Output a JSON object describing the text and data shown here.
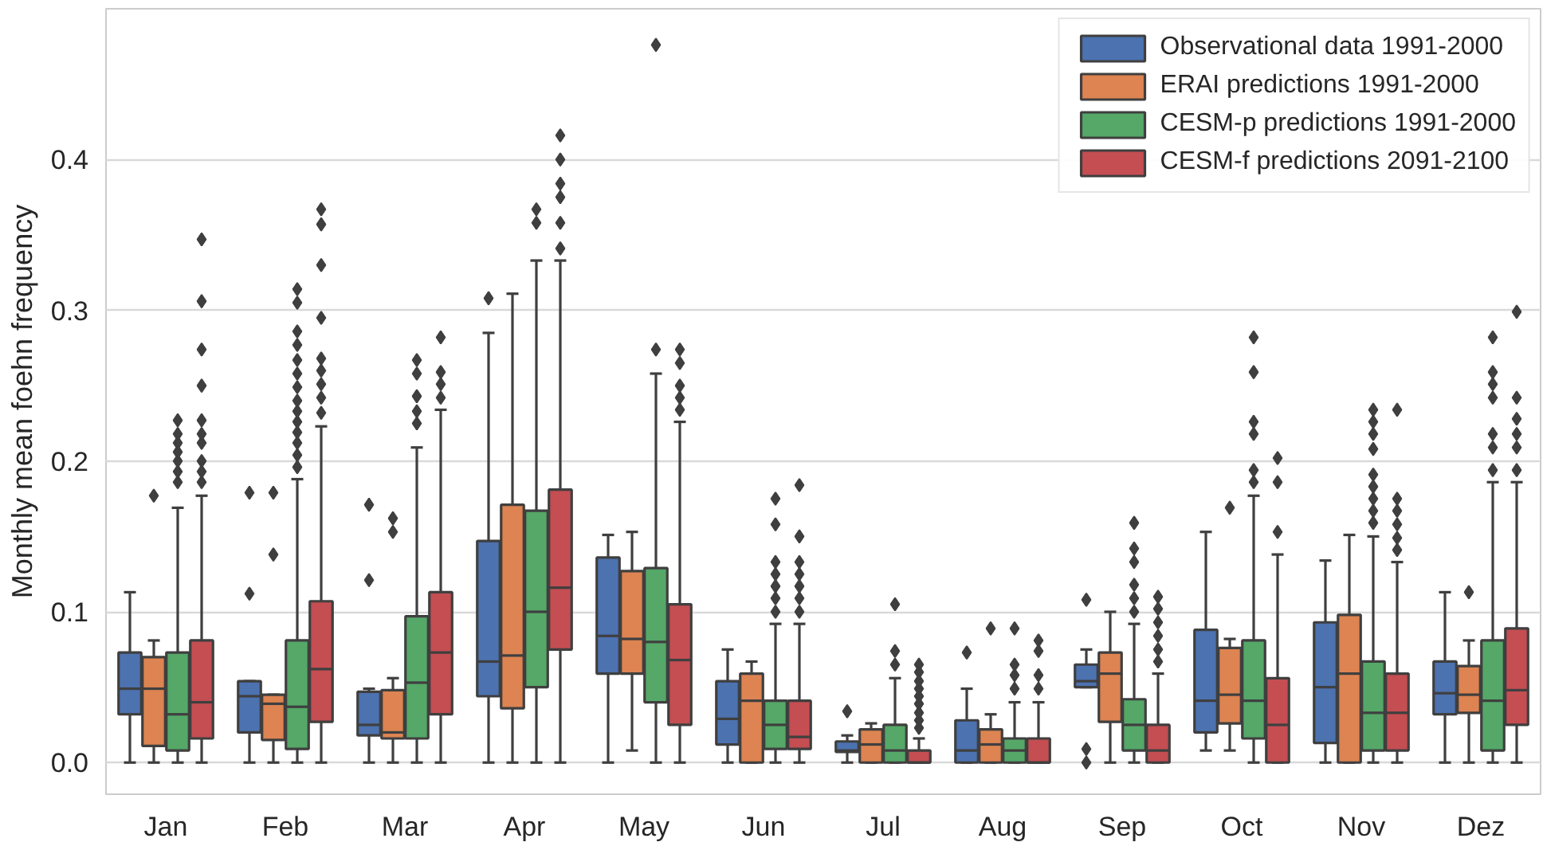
{
  "chart_data": {
    "type": "box",
    "ylabel": "Monthly mean foehn frequency",
    "categories": [
      "Jan",
      "Feb",
      "Mar",
      "Apr",
      "May",
      "Jun",
      "Jul",
      "Aug",
      "Sep",
      "Oct",
      "Nov",
      "Dez"
    ],
    "ylim": [
      -0.021,
      0.5
    ],
    "yticks": [
      {
        "value": 0,
        "label": "0.0"
      },
      {
        "value": 0.1,
        "label": "0.1"
      },
      {
        "value": 0.2,
        "label": "0.2"
      },
      {
        "value": 0.3,
        "label": "0.3"
      },
      {
        "value": 0.4,
        "label": "0.4"
      }
    ],
    "grid": "y",
    "legend": "top right",
    "marker": "diamond",
    "series": [
      {
        "name": "Observational data 1991-2000",
        "color": "#4c72b0",
        "boxes": [
          {
            "low": 0,
            "q1": 0.032,
            "median": 0.049,
            "q3": 0.073,
            "high": 0.113
          },
          {
            "low": 0,
            "q1": 0.02,
            "median": 0.044,
            "q3": 0.054,
            "high": 0.054,
            "outliers": [
              0.112,
              0.179
            ]
          },
          {
            "low": 0,
            "q1": 0.018,
            "median": 0.025,
            "q3": 0.047,
            "high": 0.049,
            "outliers": [
              0.121,
              0.171
            ]
          },
          {
            "low": 0,
            "q1": 0.044,
            "median": 0.067,
            "q3": 0.147,
            "high": 0.285,
            "outliers": [
              0.308
            ]
          },
          {
            "low": 0,
            "q1": 0.059,
            "median": 0.084,
            "q3": 0.136,
            "high": 0.151
          },
          {
            "low": 0,
            "q1": 0.012,
            "median": 0.029,
            "q3": 0.054,
            "high": 0.075
          },
          {
            "low": 0,
            "q1": 0.007,
            "median": 0.008,
            "q3": 0.014,
            "high": 0.018,
            "outliers": [
              0.034
            ]
          },
          {
            "low": 0,
            "q1": 0,
            "median": 0.008,
            "q3": 0.028,
            "high": 0.049,
            "outliers": [
              0.073
            ]
          },
          {
            "low": 0.05,
            "q1": 0.05,
            "median": 0.054,
            "q3": 0.065,
            "high": 0.075,
            "outliers": [
              0,
              0.009,
              0.108
            ]
          },
          {
            "low": 0.008,
            "q1": 0.02,
            "median": 0.041,
            "q3": 0.088,
            "high": 0.153
          },
          {
            "low": 0,
            "q1": 0.013,
            "median": 0.05,
            "q3": 0.093,
            "high": 0.134
          },
          {
            "low": 0,
            "q1": 0.032,
            "median": 0.046,
            "q3": 0.067,
            "high": 0.113
          }
        ]
      },
      {
        "name": "ERAI predictions 1991-2000",
        "color": "#dd8452",
        "boxes": [
          {
            "low": 0,
            "q1": 0.011,
            "median": 0.049,
            "q3": 0.07,
            "high": 0.081,
            "outliers": [
              0.177
            ]
          },
          {
            "low": 0,
            "q1": 0.015,
            "median": 0.039,
            "q3": 0.045,
            "high": 0.045,
            "outliers": [
              0.138,
              0.179
            ]
          },
          {
            "low": 0,
            "q1": 0.016,
            "median": 0.02,
            "q3": 0.048,
            "high": 0.056,
            "outliers": [
              0.153,
              0.162
            ]
          },
          {
            "low": 0,
            "q1": 0.036,
            "median": 0.071,
            "q3": 0.171,
            "high": 0.311
          },
          {
            "low": 0.008,
            "q1": 0.059,
            "median": 0.082,
            "q3": 0.127,
            "high": 0.153
          },
          {
            "low": 0,
            "q1": 0,
            "median": 0.041,
            "q3": 0.059,
            "high": 0.067
          },
          {
            "low": 0,
            "q1": 0,
            "median": 0.012,
            "q3": 0.022,
            "high": 0.026
          },
          {
            "low": 0,
            "q1": 0,
            "median": 0.012,
            "q3": 0.022,
            "high": 0.032,
            "outliers": [
              0.089
            ]
          },
          {
            "low": 0,
            "q1": 0.027,
            "median": 0.059,
            "q3": 0.073,
            "high": 0.1
          },
          {
            "low": 0.008,
            "q1": 0.026,
            "median": 0.045,
            "q3": 0.076,
            "high": 0.082,
            "outliers": [
              0.169
            ]
          },
          {
            "low": 0,
            "q1": 0,
            "median": 0.059,
            "q3": 0.098,
            "high": 0.151
          },
          {
            "low": 0,
            "q1": 0.033,
            "median": 0.045,
            "q3": 0.064,
            "high": 0.081,
            "outliers": [
              0.113
            ]
          }
        ]
      },
      {
        "name": "CESM-p predictions 1991-2000",
        "color": "#55a868",
        "boxes": [
          {
            "low": 0,
            "q1": 0.008,
            "median": 0.032,
            "q3": 0.073,
            "high": 0.169,
            "outliers": [
              0.186,
              0.193,
              0.2,
              0.206,
              0.212,
              0.218,
              0.227
            ]
          },
          {
            "low": 0,
            "q1": 0.009,
            "median": 0.037,
            "q3": 0.081,
            "high": 0.188,
            "outliers": [
              0.196,
              0.204,
              0.212,
              0.219,
              0.226,
              0.233,
              0.24,
              0.249,
              0.258,
              0.267,
              0.277,
              0.286,
              0.305,
              0.314
            ]
          },
          {
            "low": 0,
            "q1": 0.016,
            "median": 0.053,
            "q3": 0.097,
            "high": 0.209,
            "outliers": [
              0.225,
              0.233,
              0.243,
              0.258,
              0.267
            ]
          },
          {
            "low": 0,
            "q1": 0.05,
            "median": 0.1,
            "q3": 0.167,
            "high": 0.333,
            "outliers": [
              0.358,
              0.367
            ]
          },
          {
            "low": 0,
            "q1": 0.04,
            "median": 0.08,
            "q3": 0.129,
            "high": 0.258,
            "outliers": [
              0.274,
              0.476
            ]
          },
          {
            "low": 0,
            "q1": 0.009,
            "median": 0.025,
            "q3": 0.041,
            "high": 0.092,
            "outliers": [
              0.1,
              0.109,
              0.117,
              0.125,
              0.133,
              0.158,
              0.175
            ]
          },
          {
            "low": 0,
            "q1": 0,
            "median": 0.008,
            "q3": 0.025,
            "high": 0.056,
            "outliers": [
              0.065,
              0.074,
              0.105
            ]
          },
          {
            "low": 0,
            "q1": 0,
            "median": 0.008,
            "q3": 0.016,
            "high": 0.04,
            "outliers": [
              0.049,
              0.058,
              0.065,
              0.089
            ]
          },
          {
            "low": 0,
            "q1": 0.008,
            "median": 0.025,
            "q3": 0.042,
            "high": 0.092,
            "outliers": [
              0.1,
              0.109,
              0.118,
              0.133,
              0.142,
              0.159
            ]
          },
          {
            "low": 0,
            "q1": 0.016,
            "median": 0.041,
            "q3": 0.081,
            "high": 0.177,
            "outliers": [
              0.186,
              0.194,
              0.218,
              0.226,
              0.259,
              0.282
            ]
          },
          {
            "low": 0,
            "q1": 0.008,
            "median": 0.033,
            "q3": 0.067,
            "high": 0.15,
            "outliers": [
              0.159,
              0.167,
              0.175,
              0.183,
              0.191,
              0.208,
              0.218,
              0.226,
              0.234
            ]
          },
          {
            "low": 0,
            "q1": 0.008,
            "median": 0.041,
            "q3": 0.081,
            "high": 0.186,
            "outliers": [
              0.194,
              0.209,
              0.218,
              0.242,
              0.251,
              0.259,
              0.282
            ]
          }
        ]
      },
      {
        "name": "CESM-f predictions 2091-2100",
        "color": "#c44e52",
        "boxes": [
          {
            "low": 0,
            "q1": 0.016,
            "median": 0.04,
            "q3": 0.081,
            "high": 0.177,
            "outliers": [
              0.186,
              0.193,
              0.2,
              0.212,
              0.218,
              0.227,
              0.25,
              0.274,
              0.306,
              0.347
            ]
          },
          {
            "low": 0,
            "q1": 0.027,
            "median": 0.062,
            "q3": 0.107,
            "high": 0.223,
            "outliers": [
              0.232,
              0.242,
              0.251,
              0.26,
              0.268,
              0.295,
              0.33,
              0.357,
              0.367
            ]
          },
          {
            "low": 0,
            "q1": 0.032,
            "median": 0.073,
            "q3": 0.113,
            "high": 0.234,
            "outliers": [
              0.242,
              0.251,
              0.259,
              0.282
            ]
          },
          {
            "low": 0,
            "q1": 0.075,
            "median": 0.116,
            "q3": 0.181,
            "high": 0.333,
            "outliers": [
              0.341,
              0.358,
              0.375,
              0.384,
              0.4,
              0.416
            ]
          },
          {
            "low": 0,
            "q1": 0.025,
            "median": 0.068,
            "q3": 0.105,
            "high": 0.226,
            "outliers": [
              0.234,
              0.242,
              0.25,
              0.265,
              0.274
            ]
          },
          {
            "low": 0,
            "q1": 0.009,
            "median": 0.017,
            "q3": 0.041,
            "high": 0.092,
            "outliers": [
              0.1,
              0.109,
              0.117,
              0.125,
              0.133,
              0.15,
              0.184
            ]
          },
          {
            "low": 0,
            "q1": 0,
            "median": 0,
            "q3": 0.008,
            "high": 0.016,
            "outliers": [
              0.023,
              0.028,
              0.033,
              0.039,
              0.044,
              0.049,
              0.054,
              0.06,
              0.065
            ]
          },
          {
            "low": 0,
            "q1": 0,
            "median": 0,
            "q3": 0.016,
            "high": 0.04,
            "outliers": [
              0.049,
              0.058,
              0.074,
              0.081
            ]
          },
          {
            "low": 0,
            "q1": 0,
            "median": 0.008,
            "q3": 0.025,
            "high": 0.059,
            "outliers": [
              0.067,
              0.075,
              0.084,
              0.093,
              0.102,
              0.11
            ]
          },
          {
            "low": 0,
            "q1": 0,
            "median": 0.025,
            "q3": 0.056,
            "high": 0.138,
            "outliers": [
              0.153,
              0.186,
              0.202
            ]
          },
          {
            "low": 0,
            "q1": 0.008,
            "median": 0.033,
            "q3": 0.059,
            "high": 0.133,
            "outliers": [
              0.141,
              0.149,
              0.158,
              0.167,
              0.175,
              0.234
            ]
          },
          {
            "low": 0,
            "q1": 0.025,
            "median": 0.048,
            "q3": 0.089,
            "high": 0.186,
            "outliers": [
              0.194,
              0.209,
              0.218,
              0.228,
              0.242,
              0.299
            ]
          }
        ]
      }
    ]
  }
}
